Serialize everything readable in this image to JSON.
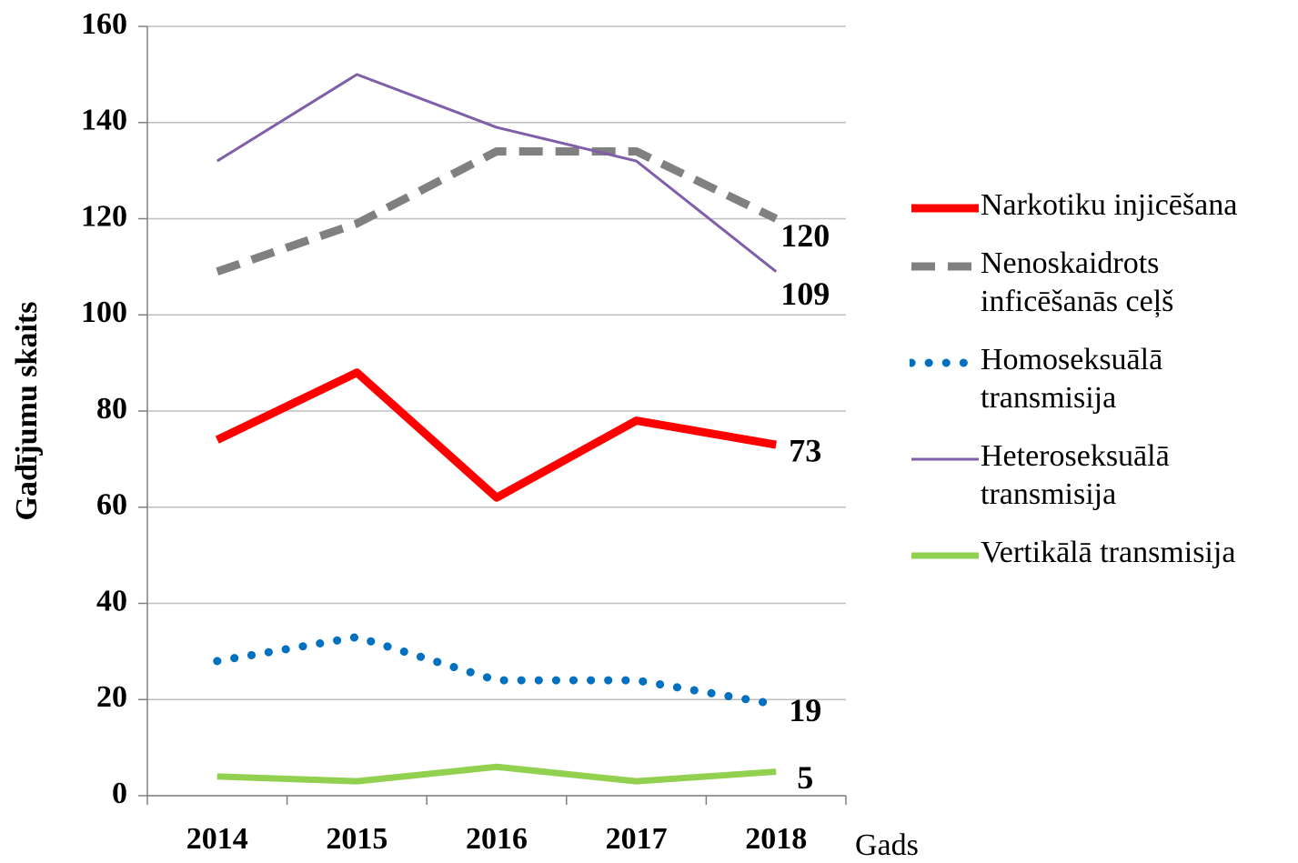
{
  "chart_data": {
    "type": "line",
    "y_label": "Gadījumu skaits",
    "x_label": "Gads",
    "categories": [
      "2014",
      "2015",
      "2016",
      "2017",
      "2018"
    ],
    "series": [
      {
        "name": "Narkotiku injicēšana",
        "color": "#ff0000",
        "line_style": "solid",
        "width": 9,
        "values": [
          74,
          88,
          62,
          78,
          73
        ]
      },
      {
        "name": "Nenoskaidrots inficēšanās ceļš",
        "color": "#808080",
        "line_style": "dashed",
        "width": 9,
        "values": [
          109,
          119,
          134,
          134,
          120
        ]
      },
      {
        "name": "Homoseksuālā transmisija",
        "color": "#0070c0",
        "line_style": "dotted",
        "width": 9,
        "values": [
          28,
          33,
          24,
          24,
          19
        ]
      },
      {
        "name": "Heteroseksuālā transmisija",
        "color": "#7f5fa8",
        "line_style": "solid",
        "width": 3,
        "values": [
          132,
          150,
          139,
          132,
          109
        ]
      },
      {
        "name": "Vertikālā transmisija",
        "color": "#92d050",
        "line_style": "solid",
        "width": 7,
        "values": [
          4,
          3,
          6,
          3,
          5
        ]
      }
    ],
    "ylim": [
      0,
      160
    ],
    "yticks": [
      0,
      20,
      40,
      60,
      80,
      100,
      120,
      140,
      160
    ],
    "grid": true,
    "legend": "right"
  }
}
